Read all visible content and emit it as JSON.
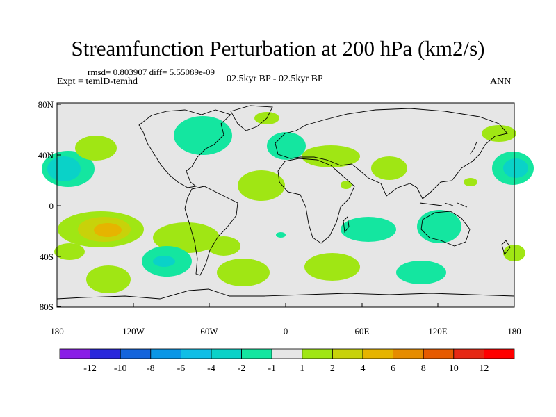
{
  "title": "Streamfunction Perturbation at 200 hPa (km2/s)",
  "stats": "rmsd= 0.803907 diff= 5.55089e-09",
  "experiment": "Expt = temlD-temhd",
  "period": "02.5kyr BP - 02.5kyr BP",
  "season": "ANN",
  "lat_labels": [
    "80N",
    "40N",
    "0",
    "40S",
    "80S"
  ],
  "lon_labels": [
    "180",
    "120W",
    "60W",
    "0",
    "60E",
    "120E",
    "180"
  ],
  "colorbar": {
    "labels": [
      "-12",
      "-10",
      "-8",
      "-6",
      "-4",
      "-2",
      "-1",
      "1",
      "2",
      "4",
      "6",
      "8",
      "10",
      "12"
    ],
    "colors": [
      "#8a1ee6",
      "#2a28dc",
      "#1464dc",
      "#0a96e6",
      "#10bee6",
      "#0ad2c8",
      "#14e6a0",
      "#e6e6e6",
      "#a0e614",
      "#c8d20a",
      "#e6b400",
      "#e68c00",
      "#e65a00",
      "#e62814",
      "#ff0000"
    ]
  },
  "map_colors": {
    "ocean_neutral": "#e6e6e6",
    "coast": "#000000"
  }
}
